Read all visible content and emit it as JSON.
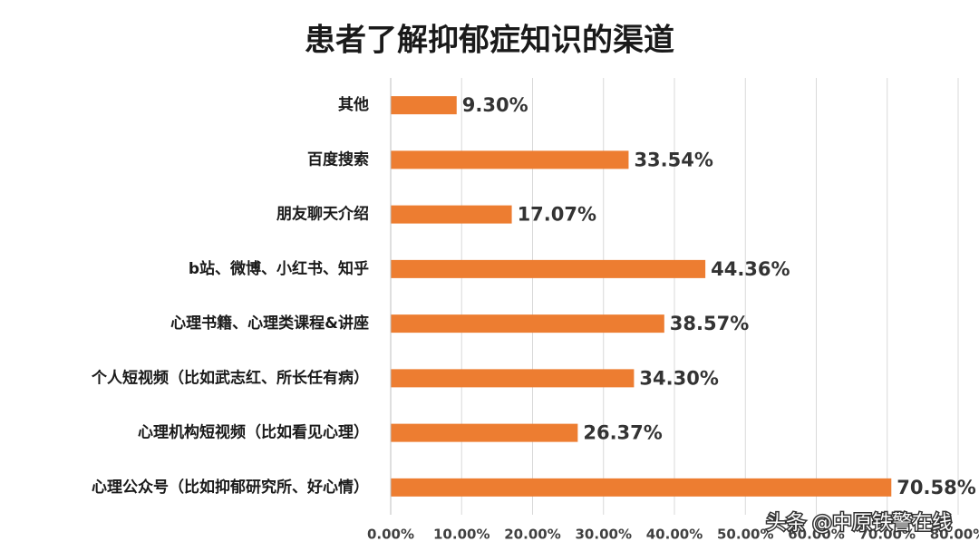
{
  "chart_data": {
    "type": "barh",
    "title": "患者了解抑郁症知识的渠道",
    "categories": [
      "其他",
      "百度搜索",
      "朋友聊天介绍",
      "b站、微博、小红书、知乎",
      "心理书籍、心理类课程&讲座",
      "个人短视频（比如武志红、所长任有病）",
      "心理机构短视频（比如看见心理）",
      "心理公众号（比如抑郁研究所、好心情）"
    ],
    "values": [
      9.3,
      33.54,
      17.07,
      44.36,
      38.57,
      34.3,
      26.37,
      70.58
    ],
    "value_labels": [
      "9.30%",
      "33.54%",
      "17.07%",
      "44.36%",
      "38.57%",
      "34.30%",
      "26.37%",
      "70.58%"
    ],
    "color": "#ed7d31",
    "xlim": [
      0,
      80
    ],
    "xticks": [
      {
        "value": 0,
        "label": "0.00%"
      },
      {
        "value": 10,
        "label": "10.00%"
      },
      {
        "value": 20,
        "label": "20.00%"
      },
      {
        "value": 30,
        "label": "30.00%"
      },
      {
        "value": 40,
        "label": "40.00%"
      },
      {
        "value": 50,
        "label": "50.00%"
      },
      {
        "value": 60,
        "label": "60.00%"
      },
      {
        "value": 70,
        "label": "70.00%"
      },
      {
        "value": 80,
        "label": "80.00%"
      }
    ],
    "grid": true,
    "footer": "头条 @中原铁警在线"
  }
}
